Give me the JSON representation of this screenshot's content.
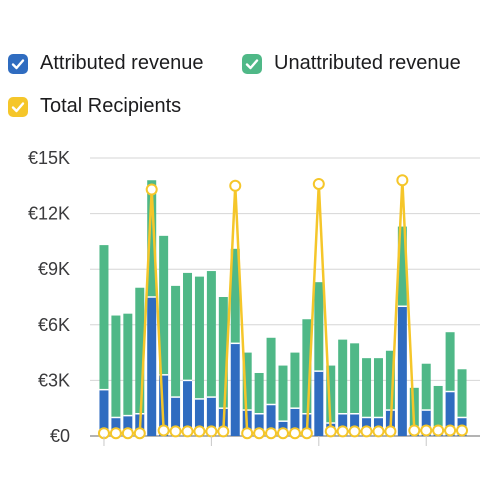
{
  "colors": {
    "attributed": "#2f6cc0",
    "unattributed": "#4fb887",
    "recipients": "#f5c62a",
    "grid": "#d6d6d6",
    "axis": "#9a9a9a"
  },
  "legend": {
    "items": [
      {
        "label": "Attributed revenue",
        "color": "#2f6cc0",
        "icon": "checkbox-checked-icon"
      },
      {
        "label": "Unattributed revenue",
        "color": "#4fb887",
        "icon": "checkbox-checked-icon"
      },
      {
        "label": "Total Recipients",
        "color": "#f5c62a",
        "icon": "checkbox-checked-icon"
      }
    ]
  },
  "chart_data": {
    "type": "bar",
    "stacked": true,
    "ylim": [
      0,
      15000
    ],
    "y_ticks": [
      {
        "value": 0,
        "label": "€0"
      },
      {
        "value": 3000,
        "label": "€3K"
      },
      {
        "value": 6000,
        "label": "€6K"
      },
      {
        "value": 9000,
        "label": "€9K"
      },
      {
        "value": 12000,
        "label": "€12K"
      },
      {
        "value": 15000,
        "label": "€15K"
      }
    ],
    "grid": true,
    "legend_position": "top-left",
    "series": [
      {
        "name": "Attributed revenue",
        "type": "bar",
        "values": [
          2500,
          1000,
          1100,
          1200,
          7500,
          3300,
          2100,
          3000,
          2000,
          2100,
          1500,
          5000,
          1400,
          1200,
          1700,
          800,
          1500,
          1200,
          3500,
          700,
          1200,
          1200,
          1000,
          1000,
          1400,
          7000,
          500,
          1400,
          500,
          2400,
          1000
        ]
      },
      {
        "name": "Unattributed revenue",
        "type": "bar",
        "values": [
          7800,
          5500,
          5500,
          6800,
          6300,
          7500,
          6000,
          5800,
          6600,
          6800,
          6000,
          5100,
          3100,
          2200,
          3600,
          3000,
          3000,
          5100,
          4800,
          3100,
          4000,
          3800,
          3200,
          3200,
          3200,
          4300,
          2100,
          2500,
          2200,
          3200,
          2600
        ]
      },
      {
        "name": "Total Recipients",
        "type": "line",
        "values": [
          150,
          150,
          150,
          150,
          13300,
          300,
          250,
          250,
          250,
          250,
          250,
          13500,
          150,
          150,
          150,
          150,
          150,
          150,
          13600,
          250,
          250,
          250,
          250,
          250,
          250,
          13800,
          300,
          300,
          300,
          300,
          300
        ]
      }
    ]
  }
}
